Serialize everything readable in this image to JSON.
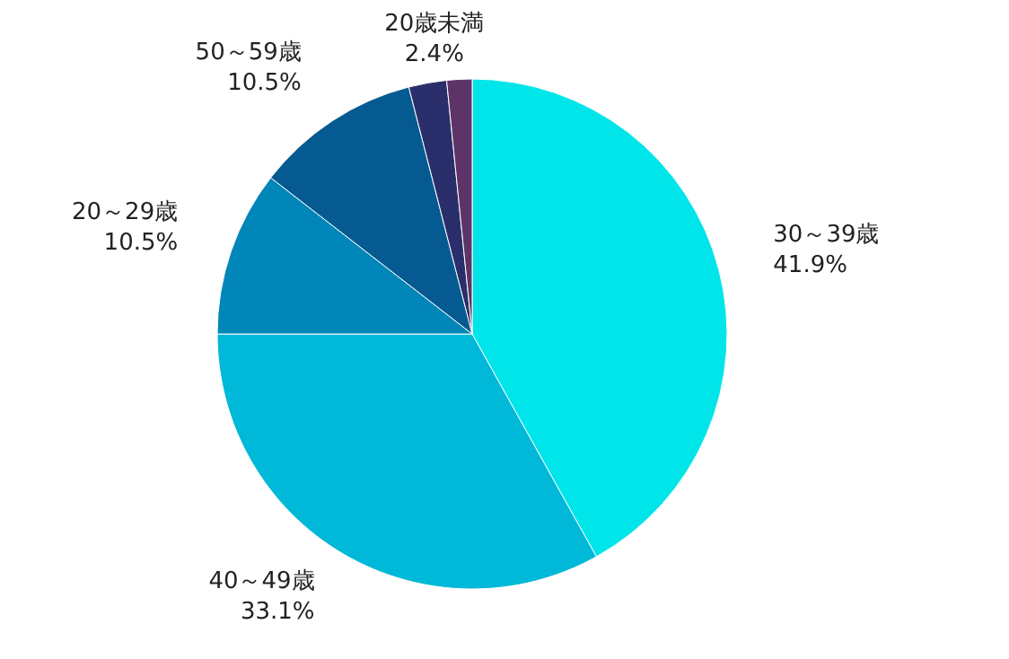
{
  "chart_data": {
    "type": "pie",
    "categories": [
      "30～39歳",
      "40～49歳",
      "20～29歳",
      "50～59歳",
      "20歳未満",
      null
    ],
    "values": [
      41.9,
      33.1,
      10.5,
      10.5,
      2.4,
      1.6
    ],
    "value_labels": [
      "41.9%",
      "33.1%",
      "10.5%",
      "10.5%",
      "2.4%",
      null
    ],
    "colors": [
      "#00e5ea",
      "#00b8d8",
      "#0086b8",
      "#045a91",
      "#2a2f6b",
      "#5e3468"
    ]
  }
}
